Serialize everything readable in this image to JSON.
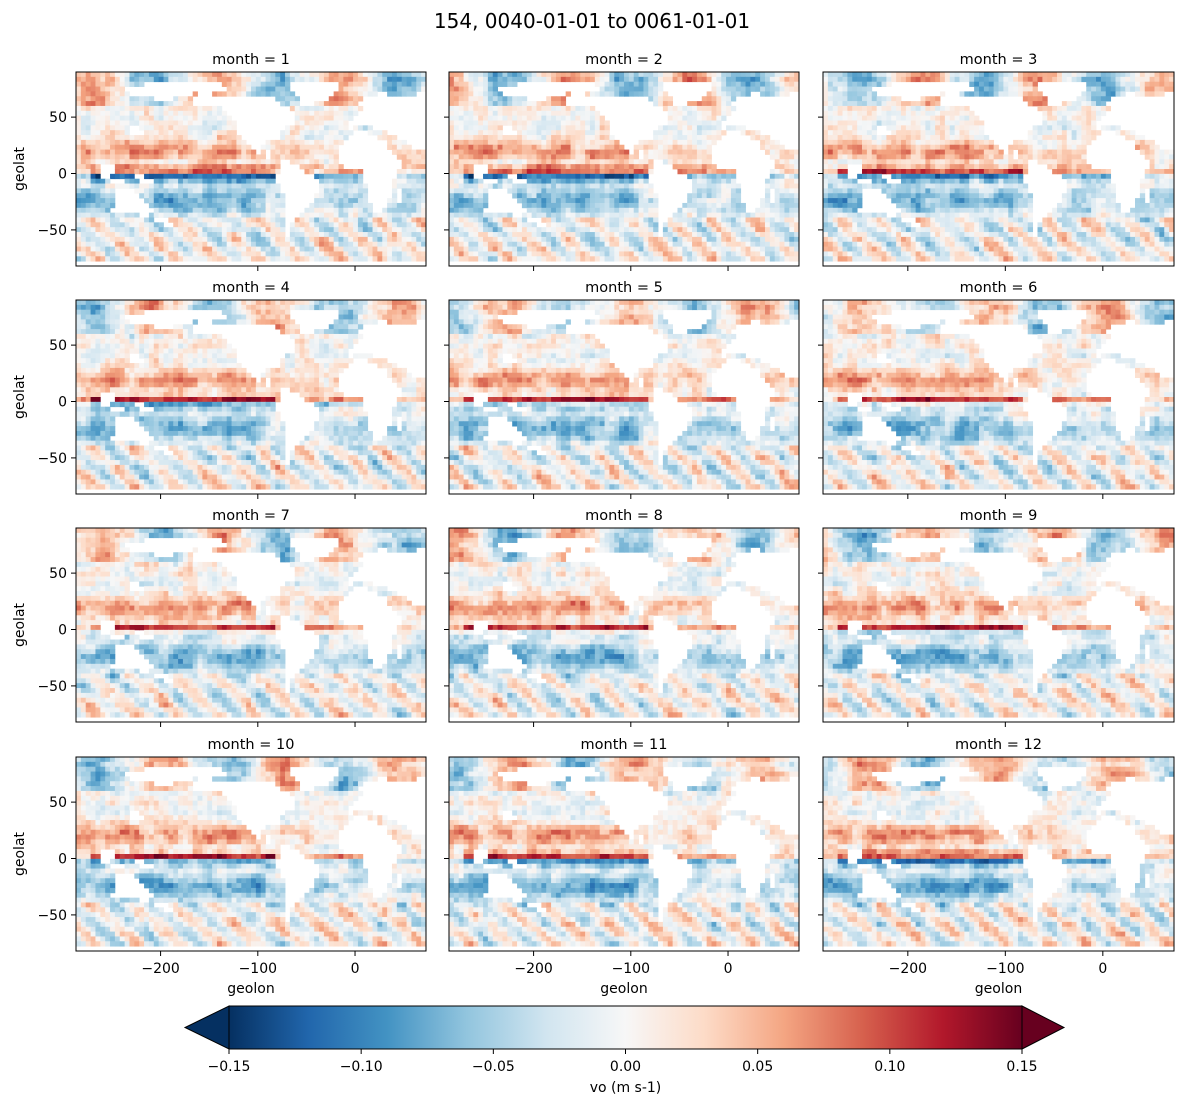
{
  "figure": {
    "title": "154, 0040-01-01 to 0061-01-01"
  },
  "chart_data": {
    "type": "heatmap",
    "title": "154, 0040-01-01 to 0061-01-01",
    "layout": "4x3 facet grid of global ocean maps",
    "xlabel": "geolon",
    "ylabel": "geolat",
    "xlim": [
      -287,
      73
    ],
    "ylim": [
      -82,
      90
    ],
    "xticks": [
      -200,
      -100,
      0
    ],
    "xtick_labels": [
      "−200",
      "−100",
      "0"
    ],
    "yticks": [
      50,
      0,
      -50
    ],
    "ytick_labels": [
      "50",
      "0",
      "−50"
    ],
    "colormap": "RdBu_r",
    "colorbar": {
      "label": "vo (m s-1)",
      "vmin": -0.15,
      "vmax": 0.15,
      "extend": "both",
      "ticks": [
        -0.15,
        -0.1,
        -0.05,
        0.0,
        0.05,
        0.1,
        0.15
      ],
      "tick_labels": [
        "−0.15",
        "−0.10",
        "−0.05",
        "0.00",
        "0.05",
        "0.10",
        "0.15"
      ],
      "colors": [
        "#053061",
        "#2166ac",
        "#4393c3",
        "#92c5de",
        "#d1e5f0",
        "#f7f7f7",
        "#fddbc7",
        "#f4a582",
        "#d6604d",
        "#b2182b",
        "#67001f"
      ]
    },
    "panels": [
      {
        "title": "month = 1"
      },
      {
        "title": "month = 2"
      },
      {
        "title": "month = 3"
      },
      {
        "title": "month = 4"
      },
      {
        "title": "month = 5"
      },
      {
        "title": "month = 6"
      },
      {
        "title": "month = 7"
      },
      {
        "title": "month = 8"
      },
      {
        "title": "month = 9"
      },
      {
        "title": "month = 10"
      },
      {
        "title": "month = 11"
      },
      {
        "title": "month = 12"
      }
    ]
  }
}
